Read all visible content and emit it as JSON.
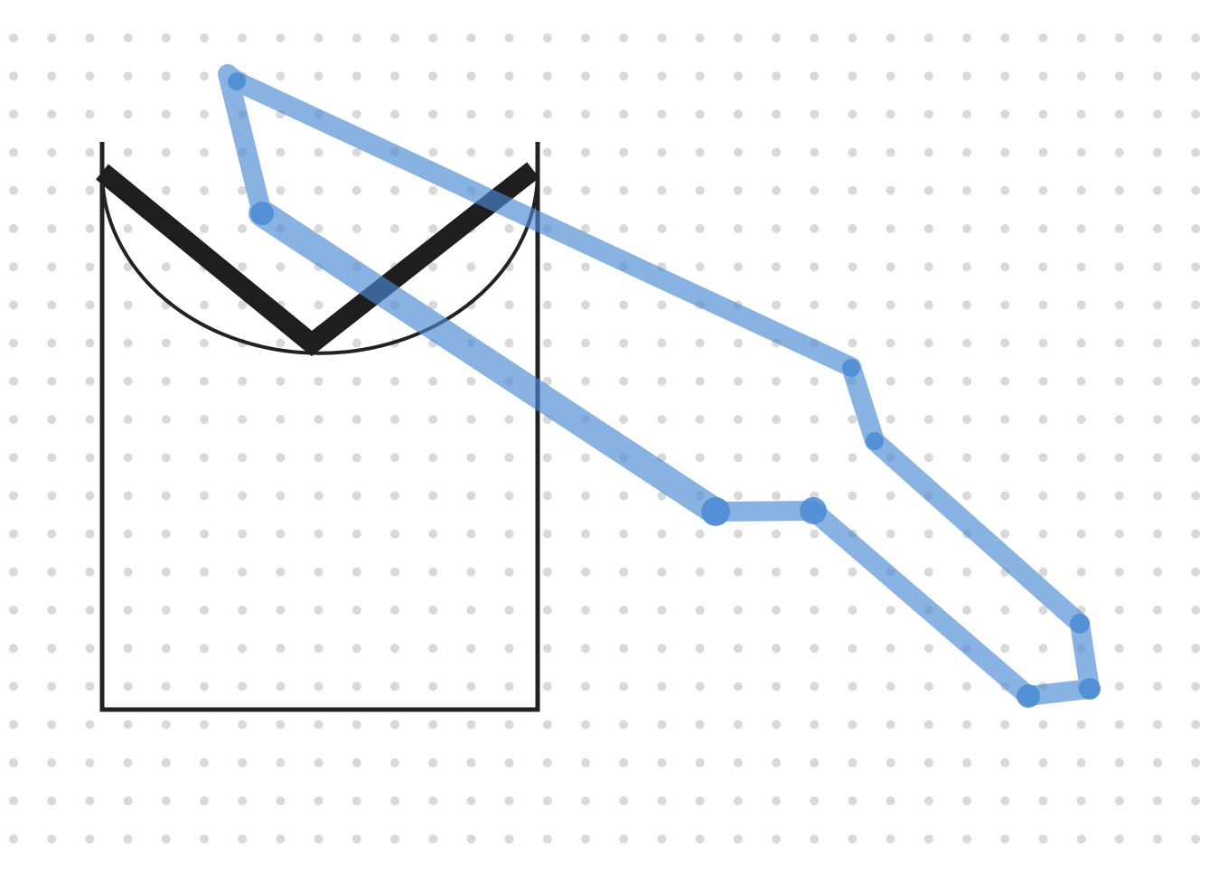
{
  "canvas": {
    "background": "#ffffff",
    "grid": {
      "visible": true,
      "style": "dots",
      "dot_color": "#d9d9d9"
    }
  },
  "shapes": [
    {
      "name": "rectangle-frame",
      "kind": "polyline",
      "stroke": "#222222",
      "fill": "none"
    },
    {
      "name": "arc-curve",
      "kind": "arc",
      "stroke": "#222222",
      "fill": "none"
    },
    {
      "name": "v-stroke",
      "kind": "polyline",
      "stroke": "#1e1e1e",
      "fill": "none"
    },
    {
      "name": "freehand-path",
      "kind": "polyline",
      "stroke": "#4a8ad4",
      "opacity": 0.65,
      "fill": "none"
    }
  ],
  "colors": {
    "ink": "#222222",
    "highlighter": "#4a8ad4"
  }
}
